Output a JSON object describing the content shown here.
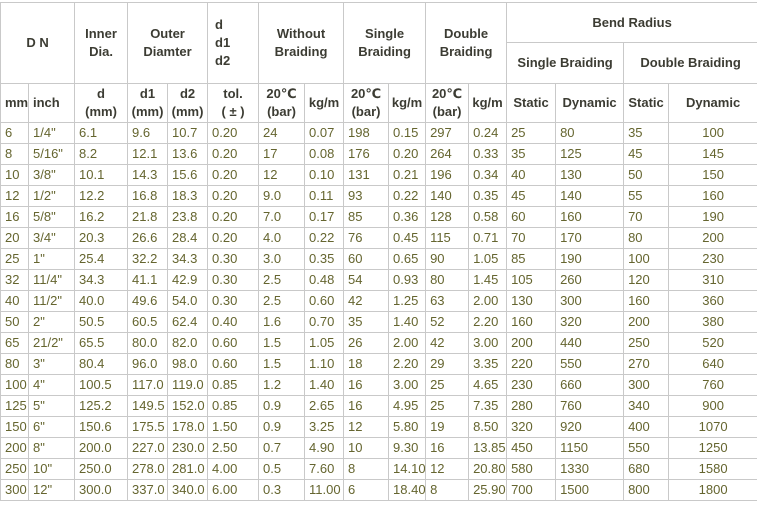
{
  "colors": {
    "border": "#c9c9c9",
    "header_text": "#3c3c33",
    "data_text": "#65652f",
    "background": "#ffffff"
  },
  "table": {
    "top_headers": {
      "dn": "D N",
      "inner_dia": "Inner\nDia.",
      "outer_diameter": "Outer\nDiamter",
      "d_d1_d2": "d\nd1\nd2",
      "without_braiding": "Without\nBraiding",
      "single_braiding": "Single\nBraiding",
      "double_braiding": "Double\nBraiding",
      "bend_radius": "Bend Radius",
      "bend_single_braiding": "Single Braiding",
      "bend_double_braiding": "Double Braiding"
    },
    "sub_headers": [
      "mm",
      "inch",
      "d\n(mm)",
      "d1\n(mm)",
      "d2\n(mm)",
      "tol.\n( ± )",
      "20℃\n(bar)",
      "kg/m",
      "20℃\n(bar)",
      "kg/m",
      "20℃\n(bar)",
      "kg/m",
      "Static",
      "Dynamic",
      "Static",
      "Dynamic"
    ],
    "column_keys": [
      "d-mm",
      "n-inch",
      "inner-d-mm",
      "d1-mm",
      "d2-mm",
      "tolerance",
      "without-braiding-bar",
      "without-braiding-kgm",
      "single-braiding-bar",
      "single-braiding-kgm",
      "double-braiding-bar",
      "double-braiding-kgm",
      "bend-single-static",
      "bend-single-dynamic",
      "bend-double-static",
      "bend-double-dynamic"
    ],
    "rows": [
      [
        "6",
        "1/4\"",
        "6.1",
        "9.6",
        "10.7",
        "0.20",
        "24",
        "0.07",
        "198",
        "0.15",
        "297",
        "0.24",
        "25",
        "80",
        "35",
        "100"
      ],
      [
        "8",
        "5/16\"",
        "8.2",
        "12.1",
        "13.6",
        "0.20",
        "17",
        "0.08",
        "176",
        "0.20",
        "264",
        "0.33",
        "35",
        "125",
        "45",
        "145"
      ],
      [
        "10",
        "3/8\"",
        "10.1",
        "14.3",
        "15.6",
        "0.20",
        "12",
        "0.10",
        "131",
        "0.21",
        "196",
        "0.34",
        "40",
        "130",
        "50",
        "150"
      ],
      [
        "12",
        "1/2\"",
        "12.2",
        "16.8",
        "18.3",
        "0.20",
        "9.0",
        "0.11",
        "93",
        "0.22",
        "140",
        "0.35",
        "45",
        "140",
        "55",
        "160"
      ],
      [
        "16",
        "5/8\"",
        "16.2",
        "21.8",
        "23.8",
        "0.20",
        "7.0",
        "0.17",
        "85",
        "0.36",
        "128",
        "0.58",
        "60",
        "160",
        "70",
        "190"
      ],
      [
        "20",
        "3/4\"",
        "20.3",
        "26.6",
        "28.4",
        "0.20",
        "4.0",
        "0.22",
        "76",
        "0.45",
        "115",
        "0.71",
        "70",
        "170",
        "80",
        "200"
      ],
      [
        "25",
        "1\"",
        "25.4",
        "32.2",
        "34.3",
        "0.30",
        "3.0",
        "0.35",
        "60",
        "0.65",
        "90",
        "1.05",
        "85",
        "190",
        "100",
        "230"
      ],
      [
        "32",
        "11/4\"",
        "34.3",
        "41.1",
        "42.9",
        "0.30",
        "2.5",
        "0.48",
        "54",
        "0.93",
        "80",
        "1.45",
        "105",
        "260",
        "120",
        "310"
      ],
      [
        "40",
        "11/2\"",
        "40.0",
        "49.6",
        "54.0",
        "0.30",
        "2.5",
        "0.60",
        "42",
        "1.25",
        "63",
        "2.00",
        "130",
        "300",
        "160",
        "360"
      ],
      [
        "50",
        "2\"",
        "50.5",
        "60.5",
        "62.4",
        "0.40",
        "1.6",
        "0.70",
        "35",
        "1.40",
        "52",
        "2.20",
        "160",
        "320",
        "200",
        "380"
      ],
      [
        "65",
        "21/2\"",
        "65.5",
        "80.0",
        "82.0",
        "0.60",
        "1.5",
        "1.05",
        "26",
        "2.00",
        "42",
        "3.00",
        "200",
        "440",
        "250",
        "520"
      ],
      [
        "80",
        "3\"",
        "80.4",
        "96.0",
        "98.0",
        "0.60",
        "1.5",
        "1.10",
        "18",
        "2.20",
        "29",
        "3.35",
        "220",
        "550",
        "270",
        "640"
      ],
      [
        "100",
        "4\"",
        "100.5",
        "117.0",
        "119.0",
        "0.85",
        "1.2",
        "1.40",
        "16",
        "3.00",
        "25",
        "4.65",
        "230",
        "660",
        "300",
        "760"
      ],
      [
        "125",
        "5\"",
        "125.2",
        "149.5",
        "152.0",
        "0.85",
        "0.9",
        "2.65",
        "16",
        "4.95",
        "25",
        "7.35",
        "280",
        "760",
        "340",
        "900"
      ],
      [
        "150",
        "6\"",
        "150.6",
        "175.5",
        "178.0",
        "1.50",
        "0.9",
        "3.25",
        "12",
        "5.80",
        "19",
        "8.50",
        "320",
        "920",
        "400",
        "1070"
      ],
      [
        "200",
        "8\"",
        "200.0",
        "227.0",
        "230.0",
        "2.50",
        "0.7",
        "4.90",
        "10",
        "9.30",
        "16",
        "13.85",
        "450",
        "1150",
        "550",
        "1250"
      ],
      [
        "250",
        "10\"",
        "250.0",
        "278.0",
        "281.0",
        "4.00",
        "0.5",
        "7.60",
        "8",
        "14.10",
        "12",
        "20.80",
        "580",
        "1330",
        "680",
        "1580"
      ],
      [
        "300",
        "12\"",
        "300.0",
        "337.0",
        "340.0",
        "6.00",
        "0.3",
        "11.00",
        "6",
        "18.40",
        "8",
        "25.90",
        "700",
        "1500",
        "800",
        "1800"
      ]
    ]
  }
}
